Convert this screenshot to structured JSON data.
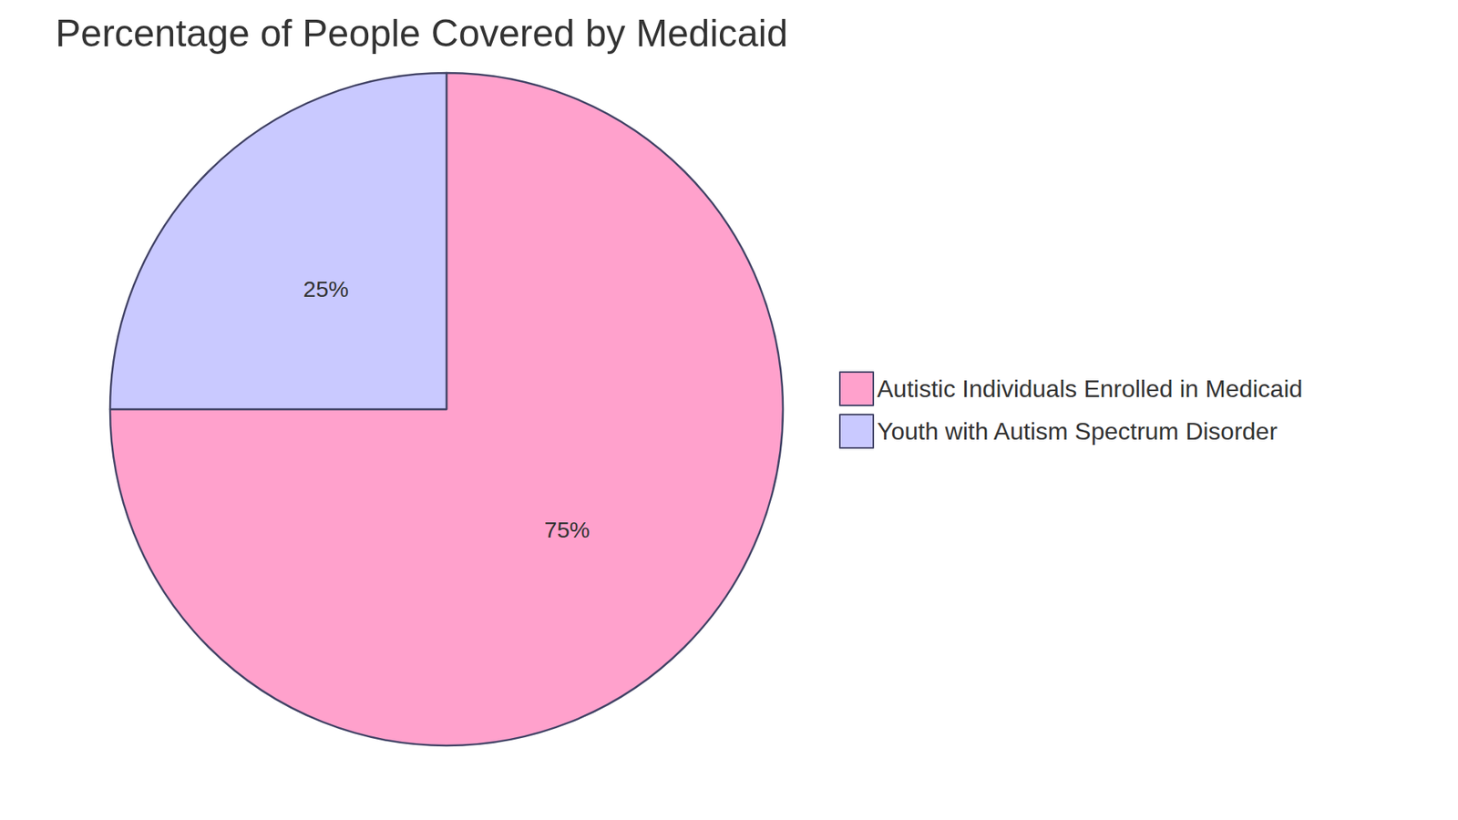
{
  "chart_data": {
    "type": "pie",
    "title": "Percentage of People Covered by Medicaid",
    "categories": [
      "Autistic Individuals Enrolled in Medicaid",
      "Youth with Autism Spectrum Disorder"
    ],
    "values": [
      75,
      25
    ],
    "value_labels": [
      "75%",
      "25%"
    ],
    "colors": [
      "#ffa1cc",
      "#c9c9ff"
    ],
    "data_labels": true,
    "legend": "right"
  }
}
